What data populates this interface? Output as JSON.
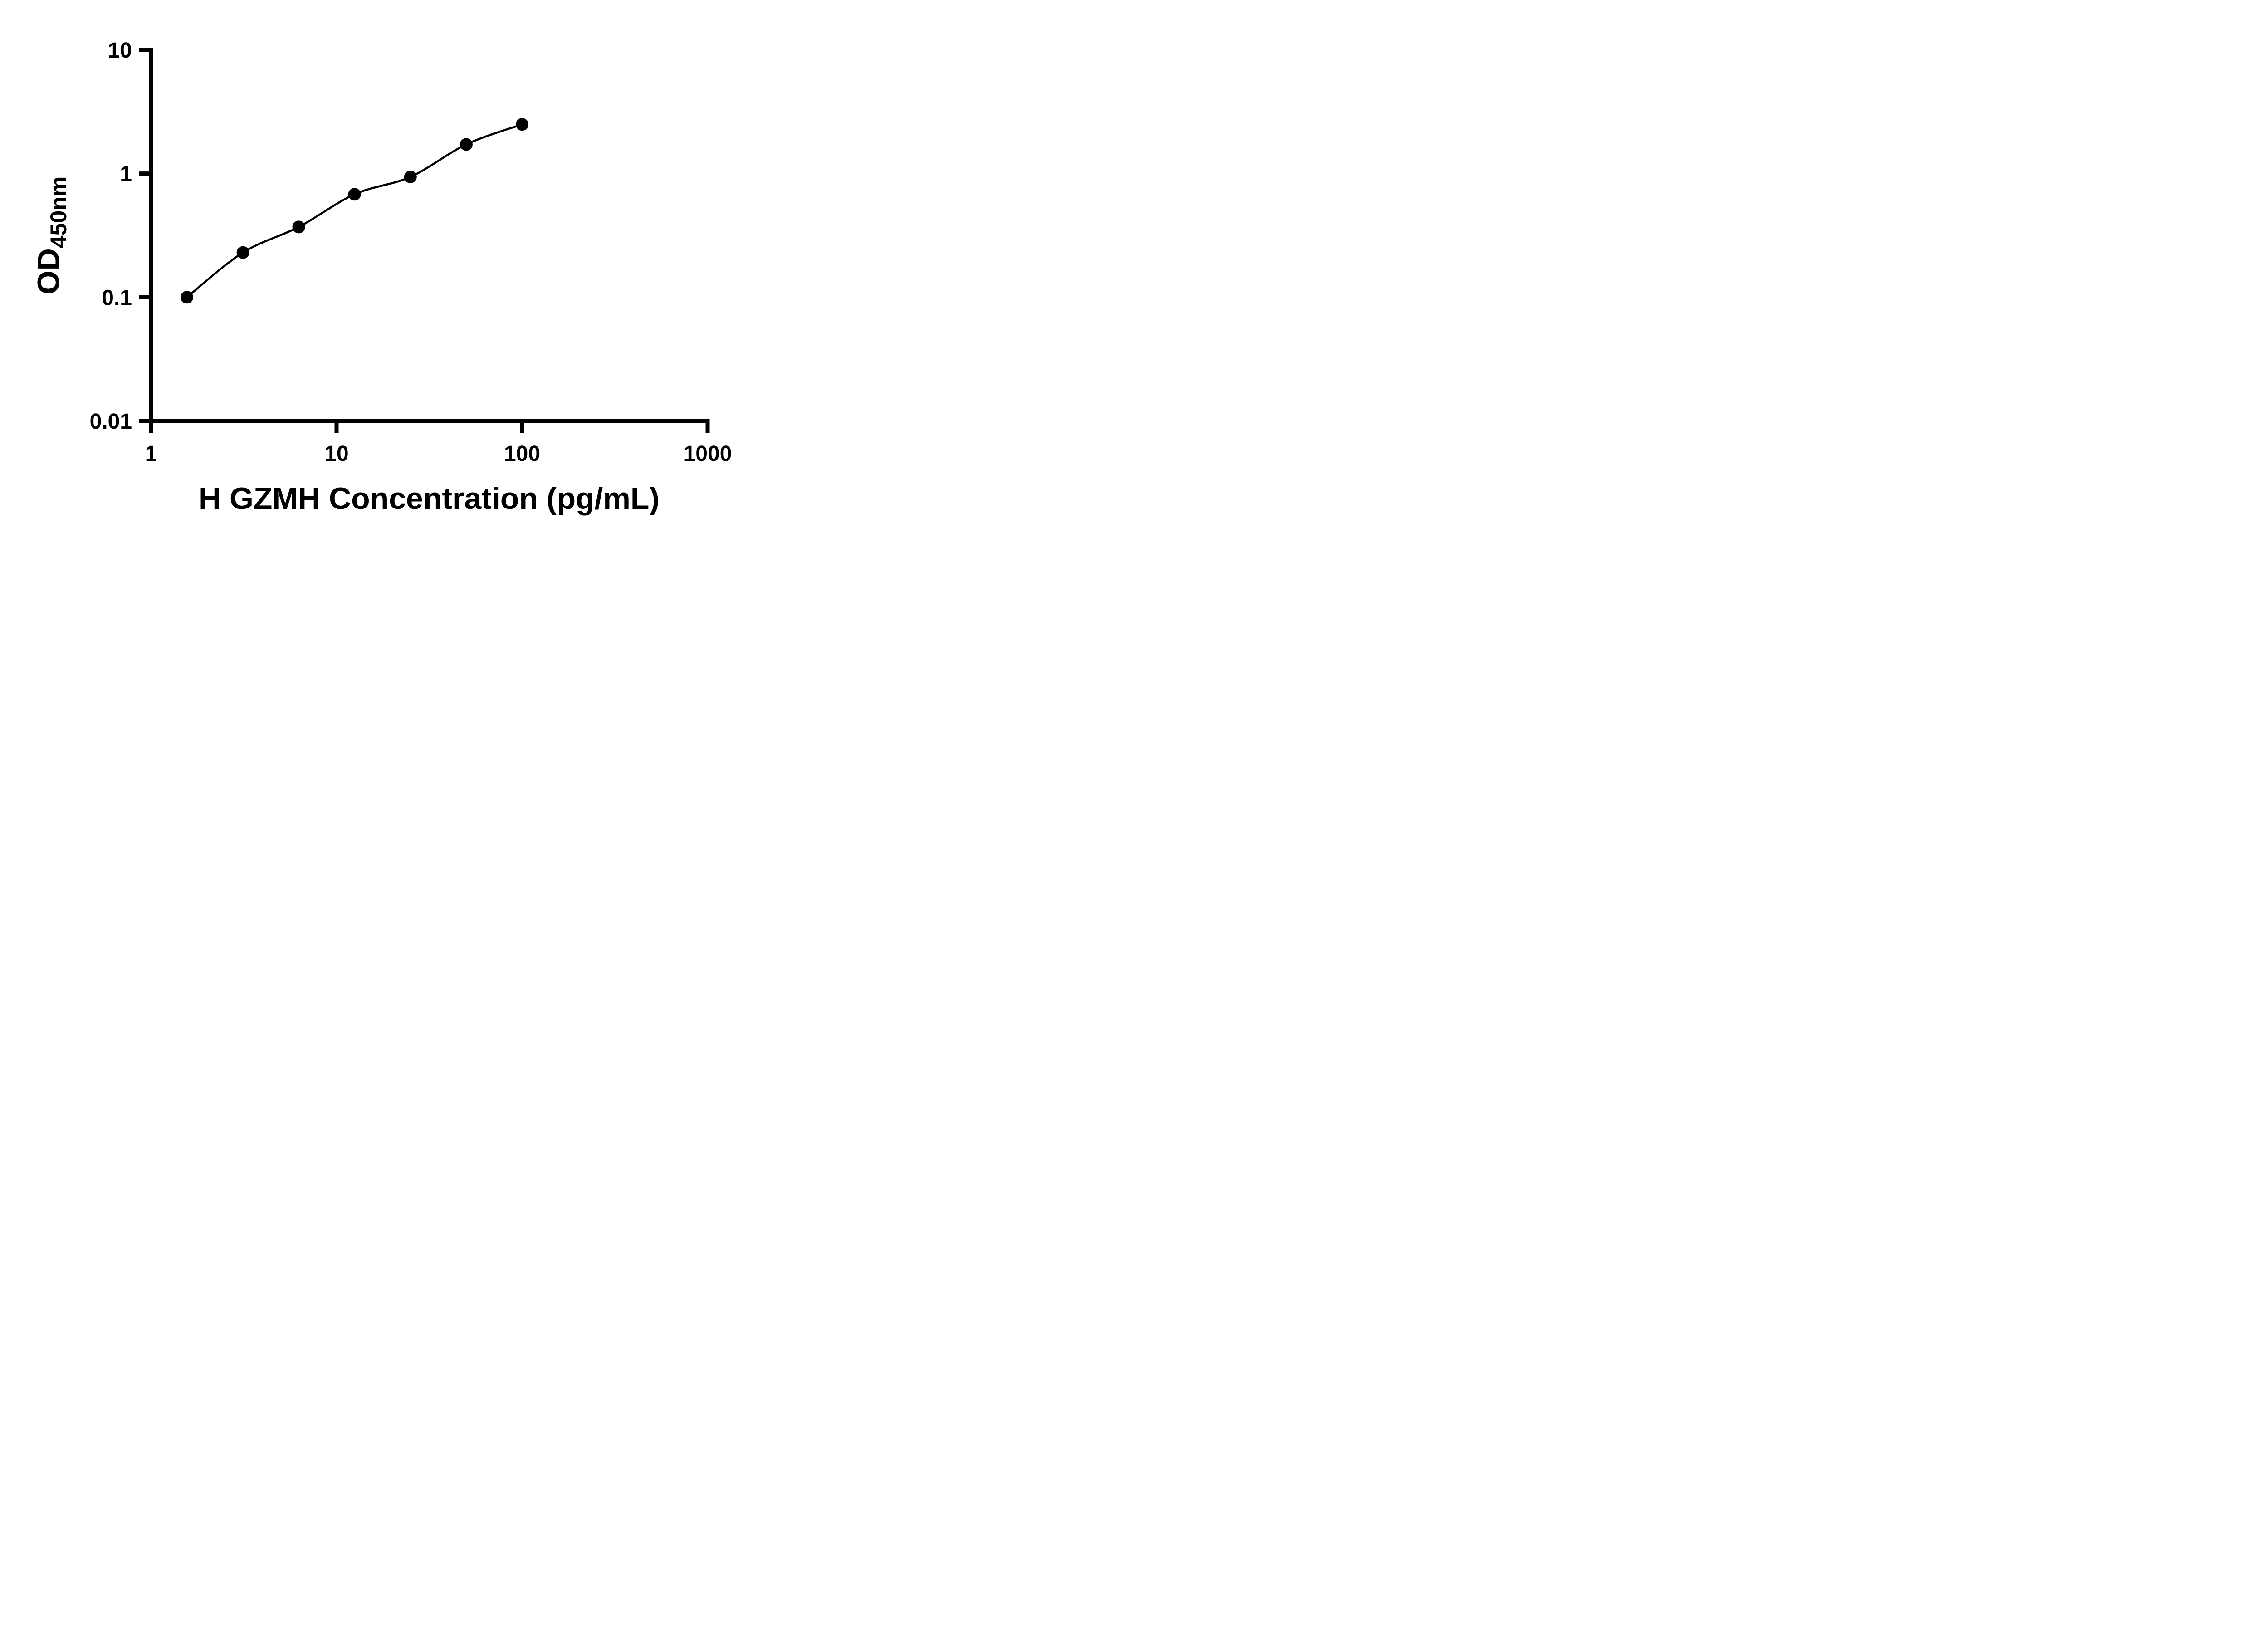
{
  "figure": {
    "background_color": "#ffffff"
  },
  "chart_data": {
    "type": "scatter",
    "title": "",
    "x": [
      1.56,
      3.13,
      6.25,
      12.5,
      25,
      50,
      100
    ],
    "y": [
      0.1,
      0.23,
      0.37,
      0.68,
      0.94,
      1.72,
      2.5
    ],
    "xlabel": "H GZMH Concentration (pg/mL)",
    "ylabel": "OD450nm",
    "ylabel_main": "OD",
    "ylabel_sub": "450nm",
    "xscale": "log",
    "yscale": "log",
    "xlim": [
      1,
      1000
    ],
    "ylim": [
      0.01,
      10
    ],
    "x_ticks": [
      "1",
      "10",
      "100",
      "1000"
    ],
    "y_ticks": [
      "10",
      "1",
      "0.1",
      "0.01"
    ],
    "grid": "off",
    "legend": "none",
    "trendline": "smooth fit curve through points",
    "axis_color": "#000000",
    "line_color": "#000000",
    "marker_color": "#000000"
  }
}
